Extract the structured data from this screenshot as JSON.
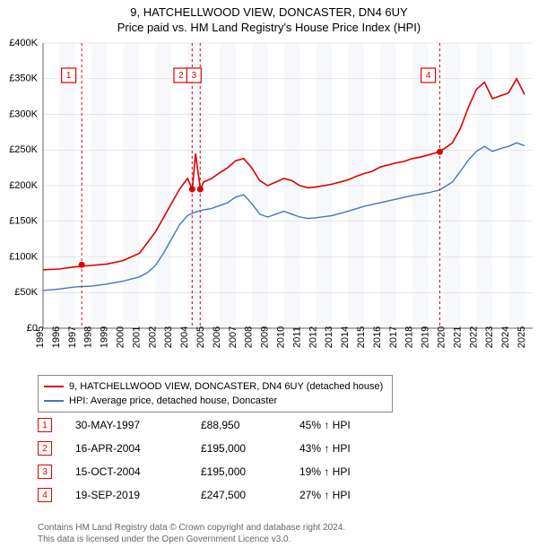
{
  "title_line1": "9, HATCHELLWOOD VIEW, DONCASTER, DN4 6UY",
  "title_line2": "Price paid vs. HM Land Registry's House Price Index (HPI)",
  "chart": {
    "type": "line",
    "background_color": "#ffffff",
    "plot_band_color": "#eef3f7",
    "xlim": [
      1995,
      2025.5
    ],
    "x_ticks": [
      1995,
      1996,
      1997,
      1998,
      1999,
      2000,
      2001,
      2002,
      2003,
      2004,
      2005,
      2006,
      2007,
      2008,
      2009,
      2010,
      2011,
      2012,
      2013,
      2014,
      2015,
      2016,
      2017,
      2018,
      2019,
      2020,
      2021,
      2022,
      2023,
      2024,
      2025
    ],
    "ylim": [
      0,
      400000
    ],
    "y_ticks": [
      0,
      50000,
      100000,
      150000,
      200000,
      250000,
      300000,
      350000,
      400000
    ],
    "y_tick_labels": [
      "£0",
      "£50K",
      "£100K",
      "£150K",
      "£200K",
      "£250K",
      "£300K",
      "£350K",
      "£400K"
    ],
    "y_tick_fontsize": 11,
    "x_tick_fontsize": 11,
    "line_width_red": 1.6,
    "line_width_blue": 1.4,
    "colors": {
      "red": "#e00000",
      "blue": "#4a76b8",
      "grid": "#d0d0d0",
      "axis": "#606060",
      "band": "#eef3f7"
    },
    "red_series": {
      "label": "9, HATCHELLWOOD VIEW, DONCASTER, DN4 6UY (detached house)",
      "color": "#e00000",
      "points": [
        [
          1995,
          82000
        ],
        [
          1996,
          83000
        ],
        [
          1997,
          86000
        ],
        [
          1998,
          88000
        ],
        [
          1999,
          90000
        ],
        [
          2000,
          95000
        ],
        [
          2001,
          105000
        ],
        [
          2001.5,
          120000
        ],
        [
          2002,
          135000
        ],
        [
          2002.5,
          155000
        ],
        [
          2003,
          175000
        ],
        [
          2003.5,
          195000
        ],
        [
          2004,
          210000
        ],
        [
          2004.3,
          195000
        ],
        [
          2004.5,
          245000
        ],
        [
          2004.8,
          195000
        ],
        [
          2005,
          205000
        ],
        [
          2005.5,
          210000
        ],
        [
          2006,
          218000
        ],
        [
          2006.5,
          225000
        ],
        [
          2007,
          235000
        ],
        [
          2007.5,
          238000
        ],
        [
          2008,
          225000
        ],
        [
          2008.5,
          207000
        ],
        [
          2009,
          200000
        ],
        [
          2009.5,
          205000
        ],
        [
          2010,
          210000
        ],
        [
          2010.5,
          207000
        ],
        [
          2011,
          200000
        ],
        [
          2011.5,
          197000
        ],
        [
          2012,
          198000
        ],
        [
          2013,
          202000
        ],
        [
          2014,
          208000
        ],
        [
          2014.5,
          213000
        ],
        [
          2015,
          217000
        ],
        [
          2015.5,
          220000
        ],
        [
          2016,
          226000
        ],
        [
          2017,
          232000
        ],
        [
          2017.5,
          234000
        ],
        [
          2018,
          238000
        ],
        [
          2018.5,
          240000
        ],
        [
          2019,
          243000
        ],
        [
          2019.72,
          247500
        ],
        [
          2020,
          252000
        ],
        [
          2020.5,
          260000
        ],
        [
          2021,
          280000
        ],
        [
          2021.5,
          310000
        ],
        [
          2022,
          335000
        ],
        [
          2022.5,
          345000
        ],
        [
          2023,
          322000
        ],
        [
          2023.5,
          326000
        ],
        [
          2024,
          330000
        ],
        [
          2024.5,
          350000
        ],
        [
          2025,
          328000
        ]
      ]
    },
    "blue_series": {
      "label": "HPI: Average price, detached house, Doncaster",
      "color": "#4a76b8",
      "points": [
        [
          1995,
          53000
        ],
        [
          1996,
          55000
        ],
        [
          1997,
          58000
        ],
        [
          1998,
          59000
        ],
        [
          1999,
          62000
        ],
        [
          2000,
          66000
        ],
        [
          2001,
          72000
        ],
        [
          2001.5,
          78000
        ],
        [
          2002,
          88000
        ],
        [
          2002.5,
          105000
        ],
        [
          2003,
          125000
        ],
        [
          2003.5,
          145000
        ],
        [
          2004,
          158000
        ],
        [
          2004.5,
          163000
        ],
        [
          2005,
          166000
        ],
        [
          2005.5,
          168000
        ],
        [
          2006,
          172000
        ],
        [
          2006.5,
          176000
        ],
        [
          2007,
          184000
        ],
        [
          2007.5,
          187000
        ],
        [
          2008,
          175000
        ],
        [
          2008.5,
          160000
        ],
        [
          2009,
          156000
        ],
        [
          2009.5,
          160000
        ],
        [
          2010,
          164000
        ],
        [
          2010.5,
          160000
        ],
        [
          2011,
          156000
        ],
        [
          2011.5,
          154000
        ],
        [
          2012,
          155000
        ],
        [
          2013,
          158000
        ],
        [
          2014,
          164000
        ],
        [
          2015,
          171000
        ],
        [
          2016,
          176000
        ],
        [
          2017,
          181000
        ],
        [
          2018,
          186000
        ],
        [
          2019,
          190000
        ],
        [
          2019.7,
          194000
        ],
        [
          2020,
          198000
        ],
        [
          2020.5,
          205000
        ],
        [
          2021,
          220000
        ],
        [
          2021.5,
          236000
        ],
        [
          2022,
          248000
        ],
        [
          2022.5,
          255000
        ],
        [
          2023,
          248000
        ],
        [
          2023.5,
          252000
        ],
        [
          2024,
          255000
        ],
        [
          2024.5,
          260000
        ],
        [
          2025,
          256000
        ]
      ]
    },
    "markers": [
      {
        "n": 1,
        "x": 1997.41,
        "label_x": 1996.6,
        "price": 88950
      },
      {
        "n": 2,
        "x": 2004.29,
        "label_x": 2003.6,
        "price": 195000
      },
      {
        "n": 3,
        "x": 2004.79,
        "label_x": 2004.4,
        "price": 195000
      },
      {
        "n": 4,
        "x": 2019.72,
        "label_x": 2019.0,
        "price": 247500
      }
    ],
    "marker_box": {
      "stroke": "#e00000",
      "fill": "#ffffff",
      "size": 16,
      "fontsize": 10,
      "dash": "3 3"
    },
    "dot_radius": 3.5
  },
  "legend": {
    "border_color": "#888",
    "fontsize": 11,
    "items": [
      {
        "color": "#e00000",
        "label": "9, HATCHELLWOOD VIEW, DONCASTER, DN4 6UY (detached house)"
      },
      {
        "color": "#4a76b8",
        "label": "HPI: Average price, detached house, Doncaster"
      }
    ]
  },
  "sales": [
    {
      "n": "1",
      "date": "30-MAY-1997",
      "price": "£88,950",
      "delta": "45% ↑ HPI"
    },
    {
      "n": "2",
      "date": "16-APR-2004",
      "price": "£195,000",
      "delta": "43% ↑ HPI"
    },
    {
      "n": "3",
      "date": "15-OCT-2004",
      "price": "£195,000",
      "delta": "19% ↑ HPI"
    },
    {
      "n": "4",
      "date": "19-SEP-2019",
      "price": "£247,500",
      "delta": "27% ↑ HPI"
    }
  ],
  "footer_line1": "Contains HM Land Registry data © Crown copyright and database right 2024.",
  "footer_line2": "This data is licensed under the Open Government Licence v3.0."
}
